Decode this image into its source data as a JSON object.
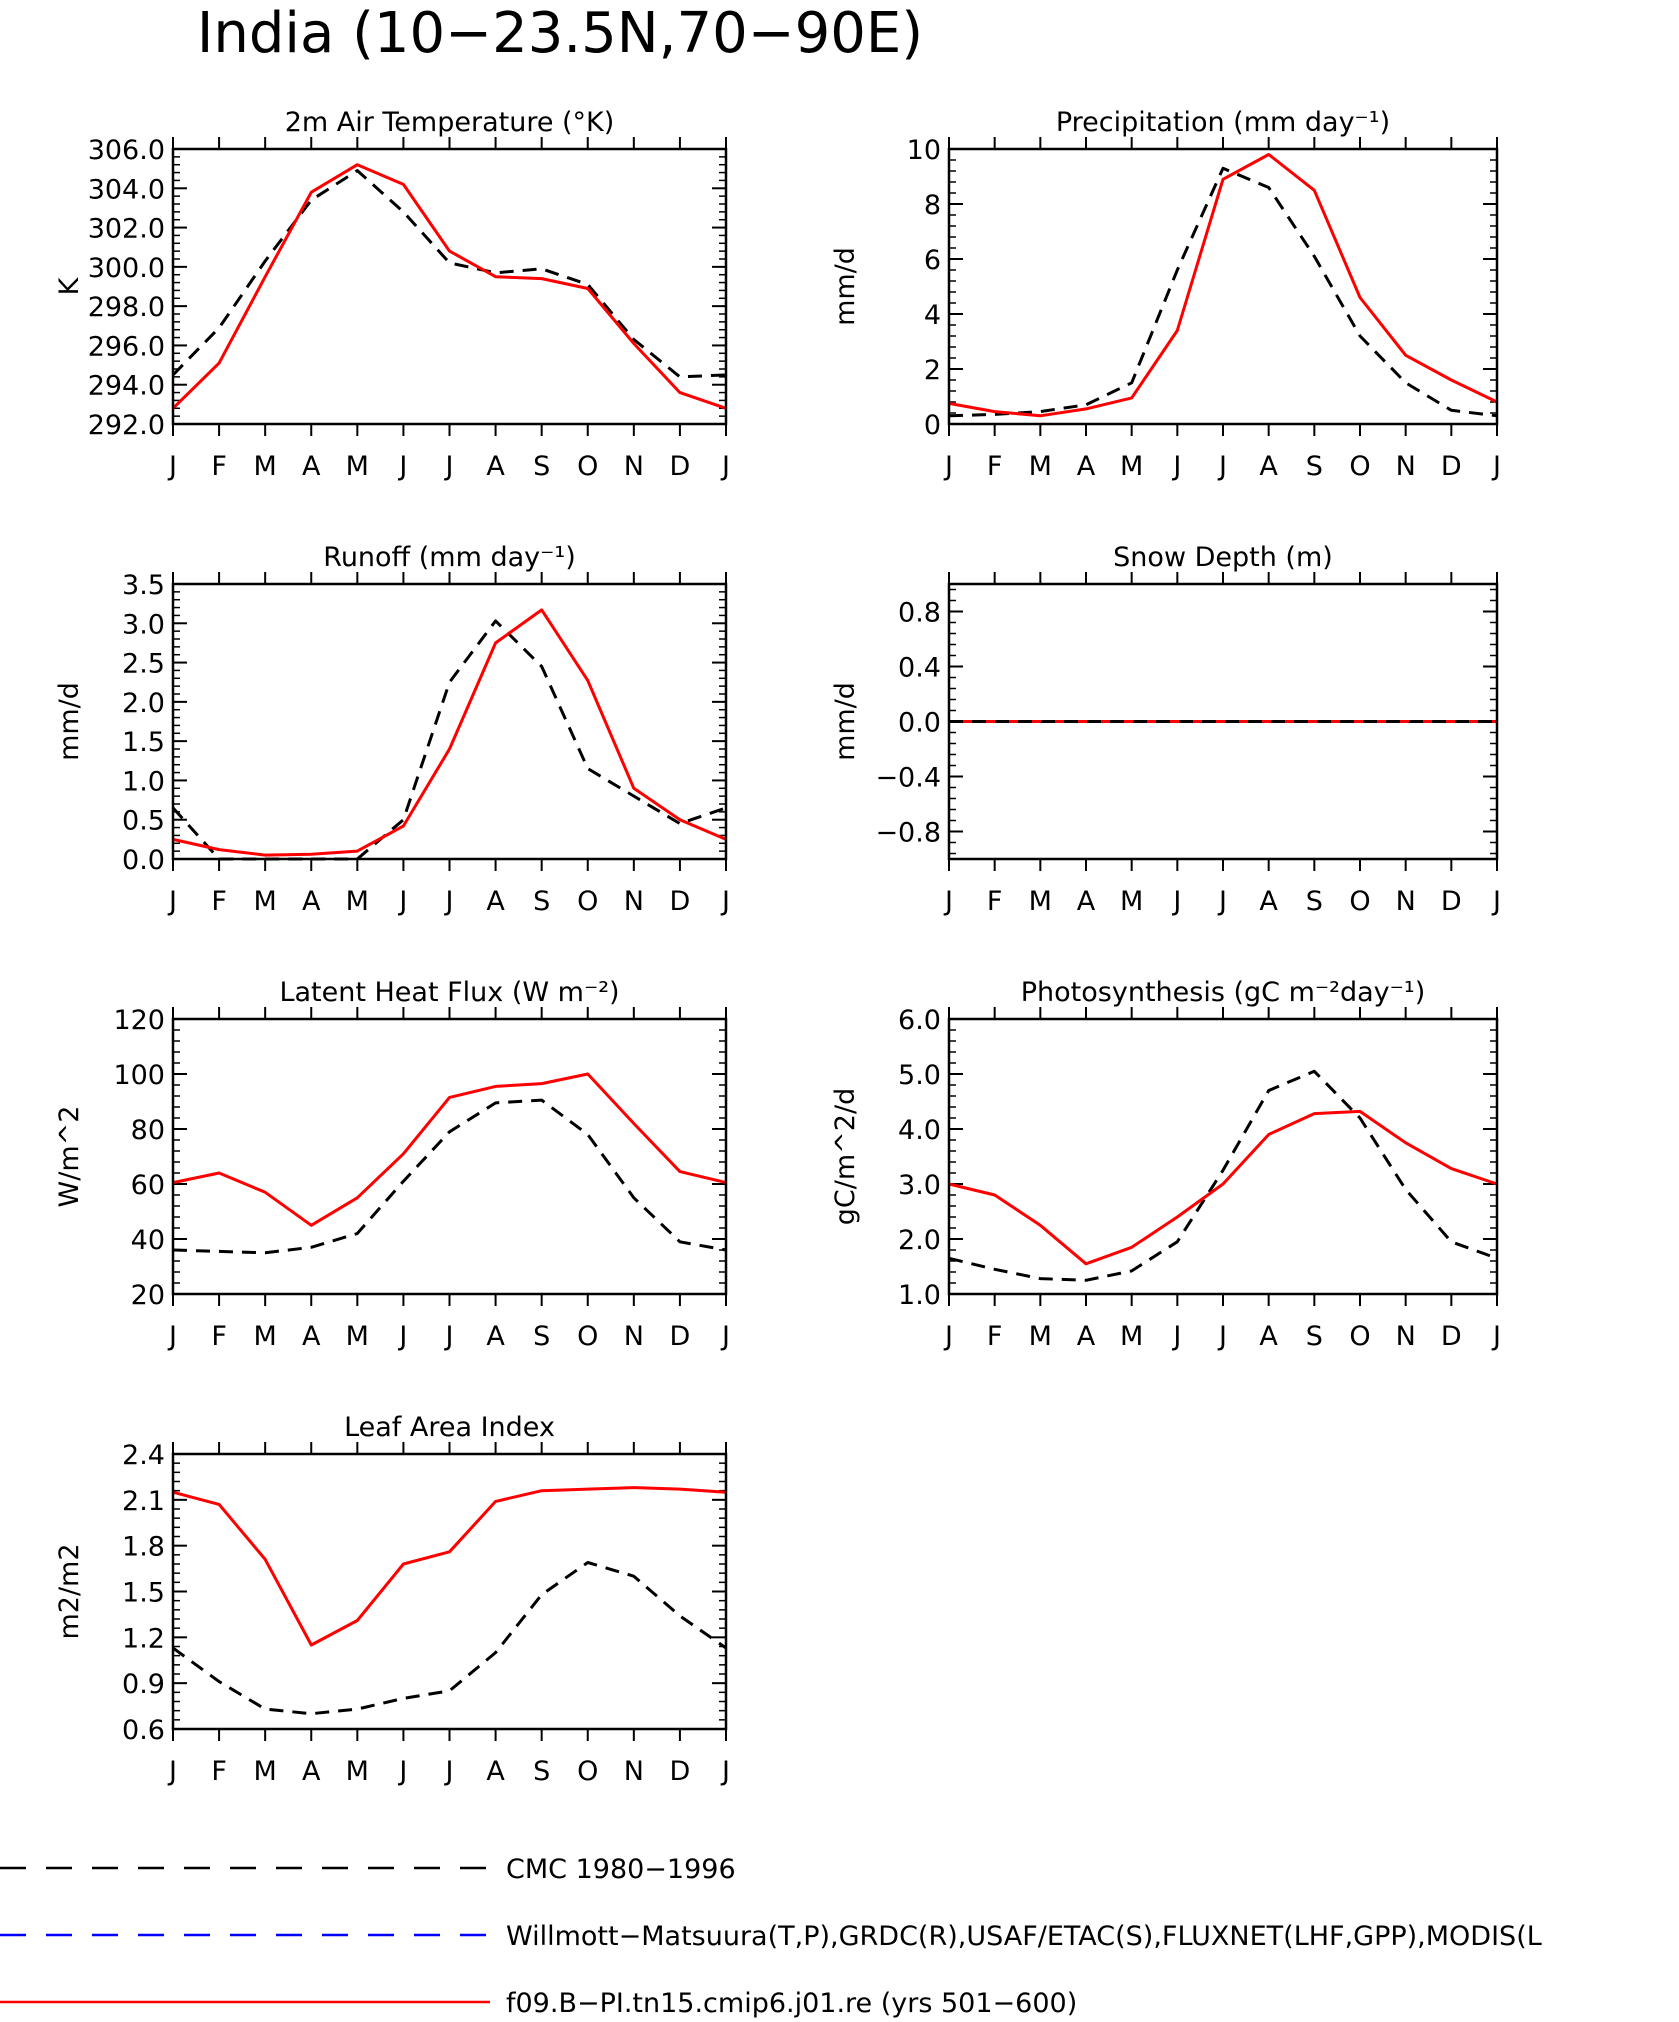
{
  "page_title": "India (10−23.5N,70−90E)",
  "months": [
    "J",
    "F",
    "M",
    "A",
    "M",
    "J",
    "J",
    "A",
    "S",
    "O",
    "N",
    "D",
    "J"
  ],
  "legend": [
    {
      "label": "CMC 1980−1996",
      "color": "#000000",
      "style": "dashed"
    },
    {
      "label": "Willmott−Matsuura(T,P),GRDC(R),USAF/ETAC(S),FLUXNET(LHF,GPP),MODIS(L",
      "color": "#0000ff",
      "style": "dashed"
    },
    {
      "label": "f09.B−PI.tn15.cmip6.j01.re (yrs 501−600)",
      "color": "#ff0000",
      "style": "solid"
    }
  ],
  "chart_data": [
    {
      "type": "line",
      "title": "2m Air Temperature (°K)",
      "ylabel": "K",
      "ylim": [
        292.0,
        306.0
      ],
      "yticks": [
        292.0,
        294.0,
        296.0,
        298.0,
        300.0,
        302.0,
        304.0,
        306.0
      ],
      "ytick_labels": [
        "292.0",
        "294.0",
        "296.0",
        "298.0",
        "300.0",
        "302.0",
        "304.0",
        "306.0"
      ],
      "categories": [
        "J",
        "F",
        "M",
        "A",
        "M",
        "J",
        "J",
        "A",
        "S",
        "O",
        "N",
        "D",
        "J"
      ],
      "series": [
        {
          "name": "CMC 1980−1996",
          "color": "#000000",
          "style": "dashed",
          "values": [
            294.5,
            296.9,
            300.3,
            303.4,
            304.9,
            302.8,
            300.2,
            299.7,
            299.9,
            299.1,
            296.3,
            294.4,
            294.5
          ]
        },
        {
          "name": "f09.B−PI.tn15.cmip6.j01.re (yrs 501−600)",
          "color": "#ff0000",
          "style": "solid",
          "values": [
            292.8,
            295.1,
            299.5,
            303.8,
            305.2,
            304.2,
            300.8,
            299.5,
            299.4,
            298.9,
            296.1,
            293.6,
            292.8
          ]
        }
      ]
    },
    {
      "type": "line",
      "title": "Precipitation (mm day⁻¹)",
      "ylabel": "mm/d",
      "ylim": [
        0,
        10
      ],
      "yticks": [
        0,
        2,
        4,
        6,
        8,
        10
      ],
      "ytick_labels": [
        "0",
        "2",
        "4",
        "6",
        "8",
        "10"
      ],
      "categories": [
        "J",
        "F",
        "M",
        "A",
        "M",
        "J",
        "J",
        "A",
        "S",
        "O",
        "N",
        "D",
        "J"
      ],
      "series": [
        {
          "name": "CMC 1980−1996",
          "color": "#000000",
          "style": "dashed",
          "values": [
            0.3,
            0.35,
            0.45,
            0.7,
            1.5,
            5.6,
            9.3,
            8.6,
            6.1,
            3.2,
            1.5,
            0.5,
            0.3
          ]
        },
        {
          "name": "f09.B−PI.tn15.cmip6.j01.re (yrs 501−600)",
          "color": "#ff0000",
          "style": "solid",
          "values": [
            0.75,
            0.45,
            0.3,
            0.55,
            0.95,
            3.4,
            8.9,
            9.8,
            8.5,
            4.6,
            2.5,
            1.6,
            0.8
          ]
        }
      ]
    },
    {
      "type": "line",
      "title": "Runoff (mm day⁻¹)",
      "ylabel": "mm/d",
      "ylim": [
        0.0,
        3.5
      ],
      "yticks": [
        0.0,
        0.5,
        1.0,
        1.5,
        2.0,
        2.5,
        3.0,
        3.5
      ],
      "ytick_labels": [
        "0.0",
        "0.5",
        "1.0",
        "1.5",
        "2.0",
        "2.5",
        "3.0",
        "3.5"
      ],
      "categories": [
        "J",
        "F",
        "M",
        "A",
        "M",
        "J",
        "J",
        "A",
        "S",
        "O",
        "N",
        "D",
        "J"
      ],
      "series": [
        {
          "name": "CMC 1980−1996",
          "color": "#000000",
          "style": "dashed",
          "values": [
            0.65,
            0.0,
            0.0,
            0.0,
            0.0,
            0.5,
            2.25,
            3.03,
            2.45,
            1.15,
            0.8,
            0.45,
            0.65
          ]
        },
        {
          "name": "f09.B−PI.tn15.cmip6.j01.re (yrs 501−600)",
          "color": "#ff0000",
          "style": "solid",
          "values": [
            0.25,
            0.12,
            0.05,
            0.06,
            0.1,
            0.42,
            1.4,
            2.75,
            3.17,
            2.27,
            0.9,
            0.5,
            0.25
          ]
        }
      ]
    },
    {
      "type": "line",
      "title": "Snow Depth (m)",
      "ylabel": "mm/d",
      "ylim": [
        -1.0,
        1.0
      ],
      "yticks": [
        -0.8,
        -0.4,
        0.0,
        0.4,
        0.8
      ],
      "ytick_labels": [
        "−0.8",
        "−0.4",
        "0.0",
        "0.4",
        "0.8"
      ],
      "zero_line": true,
      "categories": [
        "J",
        "F",
        "M",
        "A",
        "M",
        "J",
        "J",
        "A",
        "S",
        "O",
        "N",
        "D",
        "J"
      ],
      "series": [
        {
          "name": "f09.B−PI.tn15.cmip6.j01.re (yrs 501−600)",
          "color": "#ff0000",
          "style": "solid",
          "values": [
            0,
            0,
            0,
            0,
            0,
            0,
            0,
            0,
            0,
            0,
            0,
            0,
            0
          ]
        },
        {
          "name": "CMC 1980−1996",
          "color": "#000000",
          "style": "dashed",
          "values": [
            0,
            0,
            0,
            0,
            0,
            0,
            0,
            0,
            0,
            0,
            0,
            0,
            0
          ]
        }
      ]
    },
    {
      "type": "line",
      "title": "Latent Heat Flux (W m⁻²)",
      "ylabel": "W/m^2",
      "ylim": [
        20,
        120
      ],
      "yticks": [
        20,
        40,
        60,
        80,
        100,
        120
      ],
      "ytick_labels": [
        "20",
        "40",
        "60",
        "80",
        "100",
        "120"
      ],
      "categories": [
        "J",
        "F",
        "M",
        "A",
        "M",
        "J",
        "J",
        "A",
        "S",
        "O",
        "N",
        "D",
        "J"
      ],
      "series": [
        {
          "name": "CMC 1980−1996",
          "color": "#000000",
          "style": "dashed",
          "values": [
            36,
            35.5,
            35,
            37,
            42,
            61,
            79,
            89.5,
            90.5,
            78,
            55,
            39,
            36
          ]
        },
        {
          "name": "f09.B−PI.tn15.cmip6.j01.re (yrs 501−600)",
          "color": "#ff0000",
          "style": "solid",
          "values": [
            60.5,
            64,
            57,
            45,
            55,
            71,
            91.5,
            95.5,
            96.5,
            100,
            82,
            64.5,
            60.5
          ]
        }
      ]
    },
    {
      "type": "line",
      "title": "Photosynthesis (gC m⁻²day⁻¹)",
      "ylabel": "gC/m^2/d",
      "ylim": [
        1.0,
        6.0
      ],
      "yticks": [
        1.0,
        2.0,
        3.0,
        4.0,
        5.0,
        6.0
      ],
      "ytick_labels": [
        "1.0",
        "2.0",
        "3.0",
        "4.0",
        "5.0",
        "6.0"
      ],
      "categories": [
        "J",
        "F",
        "M",
        "A",
        "M",
        "J",
        "J",
        "A",
        "S",
        "O",
        "N",
        "D",
        "J"
      ],
      "series": [
        {
          "name": "CMC 1980−1996",
          "color": "#000000",
          "style": "dashed",
          "values": [
            1.65,
            1.45,
            1.28,
            1.25,
            1.42,
            1.95,
            3.25,
            4.7,
            5.05,
            4.2,
            2.9,
            1.95,
            1.65
          ]
        },
        {
          "name": "f09.B−PI.tn15.cmip6.j01.re (yrs 501−600)",
          "color": "#ff0000",
          "style": "solid",
          "values": [
            3.0,
            2.8,
            2.25,
            1.55,
            1.85,
            2.4,
            3.0,
            3.9,
            4.28,
            4.32,
            3.75,
            3.28,
            3.0
          ]
        }
      ]
    },
    {
      "type": "line",
      "title": "Leaf Area Index",
      "ylabel": "m2/m2",
      "ylim": [
        0.6,
        2.4
      ],
      "yticks": [
        0.6,
        0.9,
        1.2,
        1.5,
        1.8,
        2.1,
        2.4
      ],
      "ytick_labels": [
        "0.6",
        "0.9",
        "1.2",
        "1.5",
        "1.8",
        "2.1",
        "2.4"
      ],
      "categories": [
        "J",
        "F",
        "M",
        "A",
        "M",
        "J",
        "J",
        "A",
        "S",
        "O",
        "N",
        "D",
        "J"
      ],
      "series": [
        {
          "name": "CMC 1980−1996",
          "color": "#000000",
          "style": "dashed",
          "values": [
            1.13,
            0.91,
            0.73,
            0.7,
            0.73,
            0.8,
            0.85,
            1.1,
            1.48,
            1.69,
            1.6,
            1.34,
            1.13
          ]
        },
        {
          "name": "f09.B−PI.tn15.cmip6.j01.re (yrs 501−600)",
          "color": "#ff0000",
          "style": "solid",
          "values": [
            2.15,
            2.07,
            1.71,
            1.15,
            1.31,
            1.68,
            1.76,
            2.09,
            2.16,
            2.17,
            2.18,
            2.17,
            2.15
          ]
        }
      ]
    }
  ]
}
